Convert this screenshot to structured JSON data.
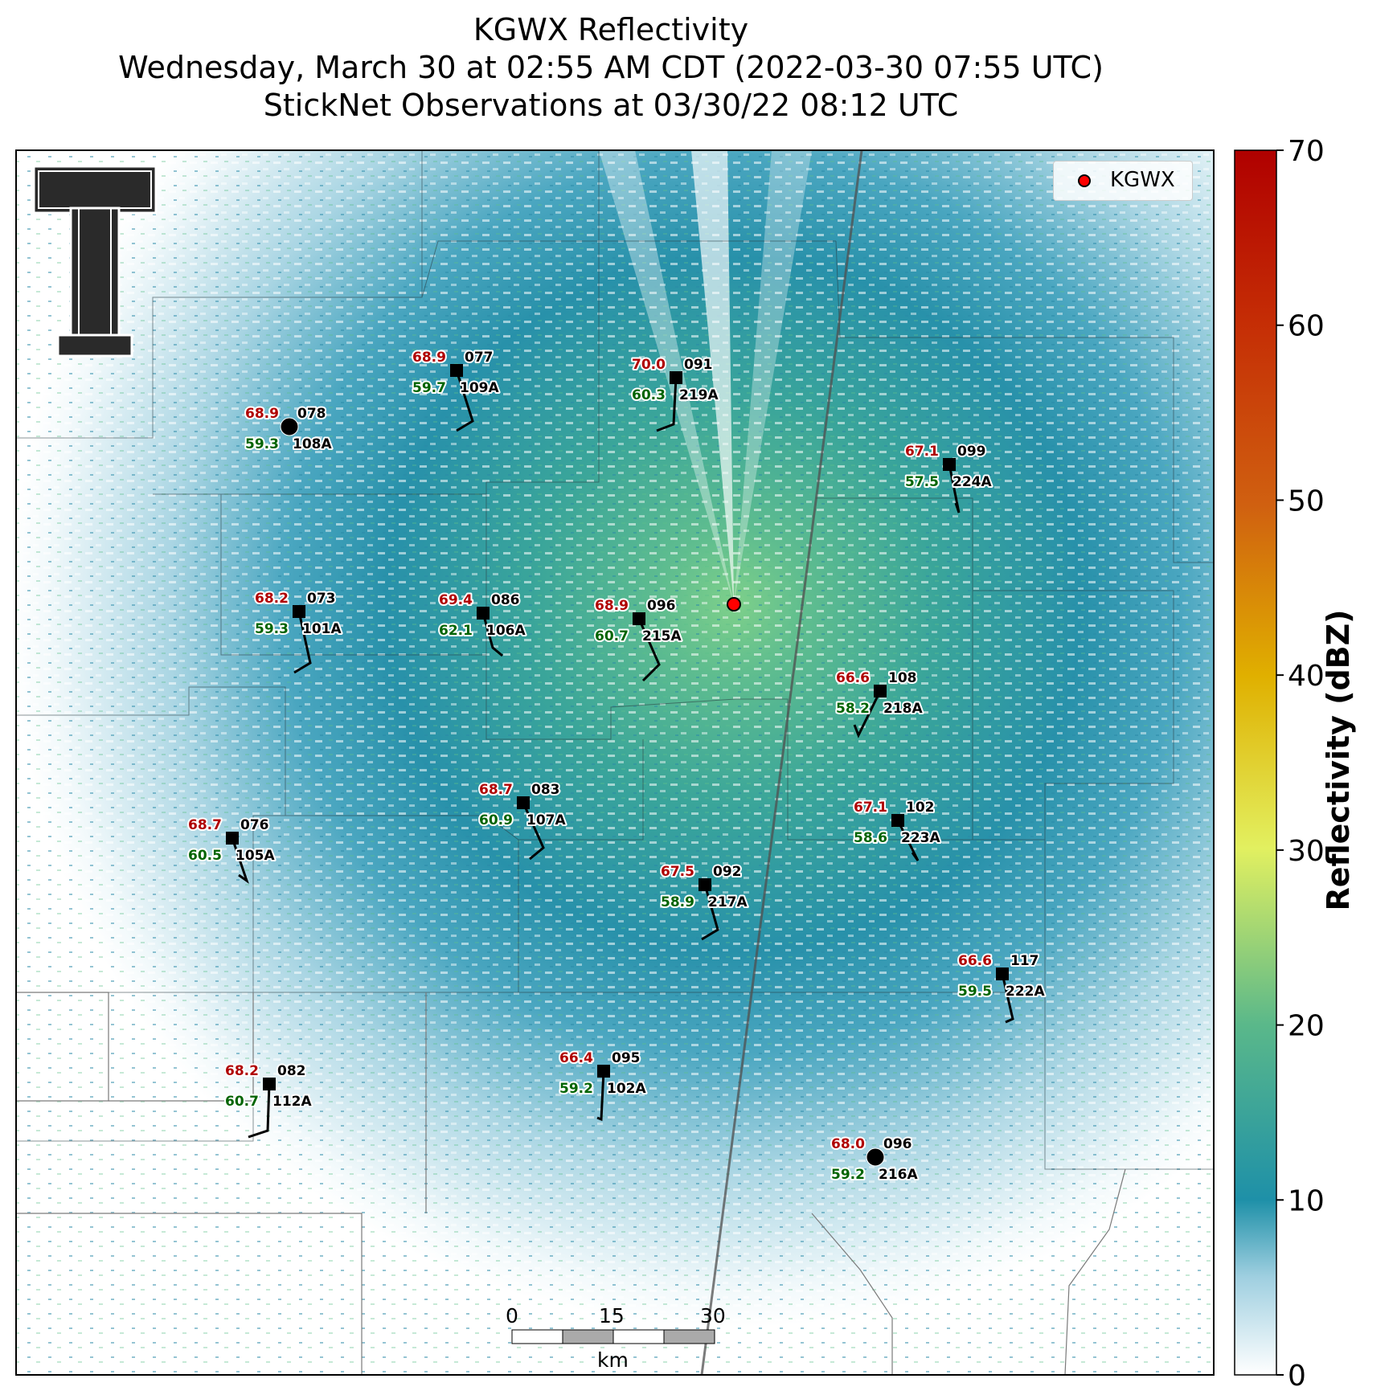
{
  "title": {
    "line1": "KGWX Reflectivity",
    "line2": "Wednesday, March 30 at 02:55 AM CDT (2022-03-30 07:55 UTC)",
    "line3": "StickNet Observations at 03/30/22 08:12 UTC"
  },
  "legend": {
    "label": "KGWX",
    "marker_color": "#ff0000"
  },
  "colorbar": {
    "label": "Reflectivity (dBZ)",
    "ticks": [
      "0",
      "10",
      "20",
      "30",
      "40",
      "50",
      "60",
      "70"
    ],
    "range": [
      0,
      70
    ],
    "colors": [
      "#ffffff",
      "#1e90a8",
      "#5ab88a",
      "#e2f060",
      "#e0b000",
      "#d06010",
      "#b00000"
    ]
  },
  "scale_bar": {
    "labels": [
      "0",
      "15",
      "30"
    ],
    "unit": "km"
  },
  "radar_site": {
    "name": "KGWX"
  },
  "stations": [
    {
      "id": "109A",
      "temp": "68.9",
      "dew": "59.7",
      "dir": "077",
      "marker": "square"
    },
    {
      "id": "219A",
      "temp": "70.0",
      "dew": "60.3",
      "dir": "091",
      "marker": "square"
    },
    {
      "id": "108A",
      "temp": "68.9",
      "dew": "59.3",
      "dir": "078",
      "marker": "circle"
    },
    {
      "id": "224A",
      "temp": "67.1",
      "dew": "57.5",
      "dir": "099",
      "marker": "square"
    },
    {
      "id": "101A",
      "temp": "68.2",
      "dew": "59.3",
      "dir": "073",
      "marker": "square"
    },
    {
      "id": "106A",
      "temp": "69.4",
      "dew": "62.1",
      "dir": "086",
      "marker": "square"
    },
    {
      "id": "215A",
      "temp": "68.9",
      "dew": "60.7",
      "dir": "096",
      "marker": "square"
    },
    {
      "id": "218A",
      "temp": "66.6",
      "dew": "58.2",
      "dir": "108",
      "marker": "square"
    },
    {
      "id": "107A",
      "temp": "68.7",
      "dew": "60.9",
      "dir": "083",
      "marker": "square"
    },
    {
      "id": "223A",
      "temp": "67.1",
      "dew": "58.6",
      "dir": "102",
      "marker": "square"
    },
    {
      "id": "105A",
      "temp": "68.7",
      "dew": "60.5",
      "dir": "076",
      "marker": "square"
    },
    {
      "id": "217A",
      "temp": "67.5",
      "dew": "58.9",
      "dir": "092",
      "marker": "square"
    },
    {
      "id": "222A",
      "temp": "66.6",
      "dew": "59.5",
      "dir": "117",
      "marker": "square"
    },
    {
      "id": "102A",
      "temp": "66.4",
      "dew": "59.2",
      "dir": "095",
      "marker": "square"
    },
    {
      "id": "112A",
      "temp": "68.2",
      "dew": "60.7",
      "dir": "082",
      "marker": "square"
    },
    {
      "id": "216A",
      "temp": "68.0",
      "dew": "59.2",
      "dir": "096",
      "marker": "circle"
    }
  ]
}
